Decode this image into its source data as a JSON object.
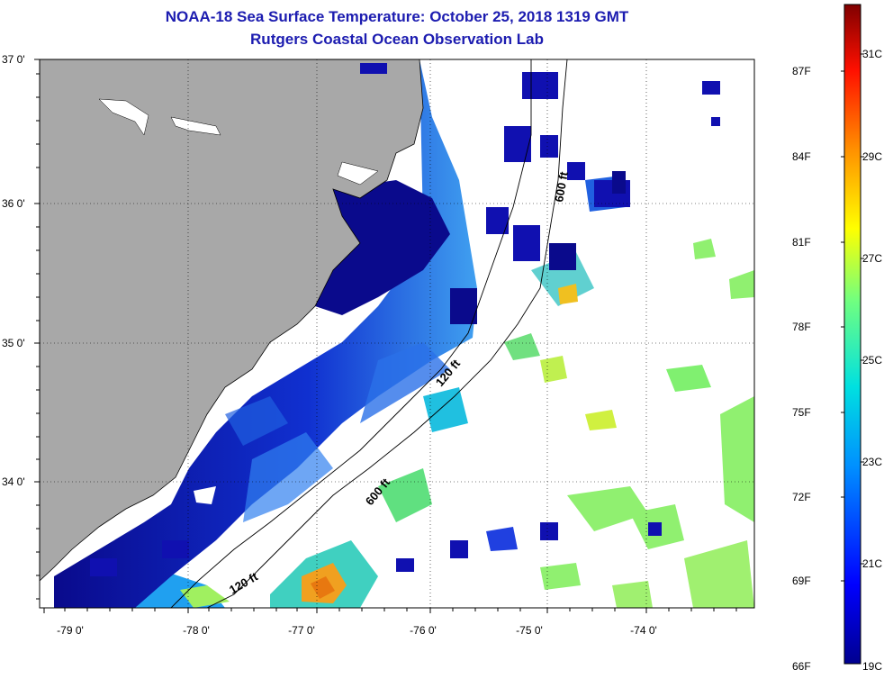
{
  "title": {
    "line1": "NOAA-18 Sea Surface Temperature:  October 25, 2018 1319 GMT",
    "line2": "Rutgers Coastal Ocean Observation Lab"
  },
  "colors": {
    "title": "#1c1cb0",
    "land": "#a8a8a8",
    "cloud_mask": "#ffffff",
    "cold": "#0a0a8c",
    "warm": "#e8901a"
  },
  "lat_labels": [
    "37 0'",
    "36 0'",
    "35 0'",
    "34 0'"
  ],
  "lon_labels": [
    "-79 0'",
    "-78 0'",
    "-77 0'",
    "-76 0'",
    "-75 0'",
    "-74 0'"
  ],
  "contour_labels": [
    "600 ft",
    "120 ft",
    "600 ft",
    "120 ft"
  ],
  "colorbar": {
    "fahrenheit_labels": [
      "87F",
      "84F",
      "81F",
      "78F",
      "75F",
      "72F",
      "69F",
      "66F"
    ],
    "celsius_labels": [
      "31C",
      "29C",
      "27C",
      "25C",
      "23C",
      "21C",
      "19C"
    ]
  }
}
